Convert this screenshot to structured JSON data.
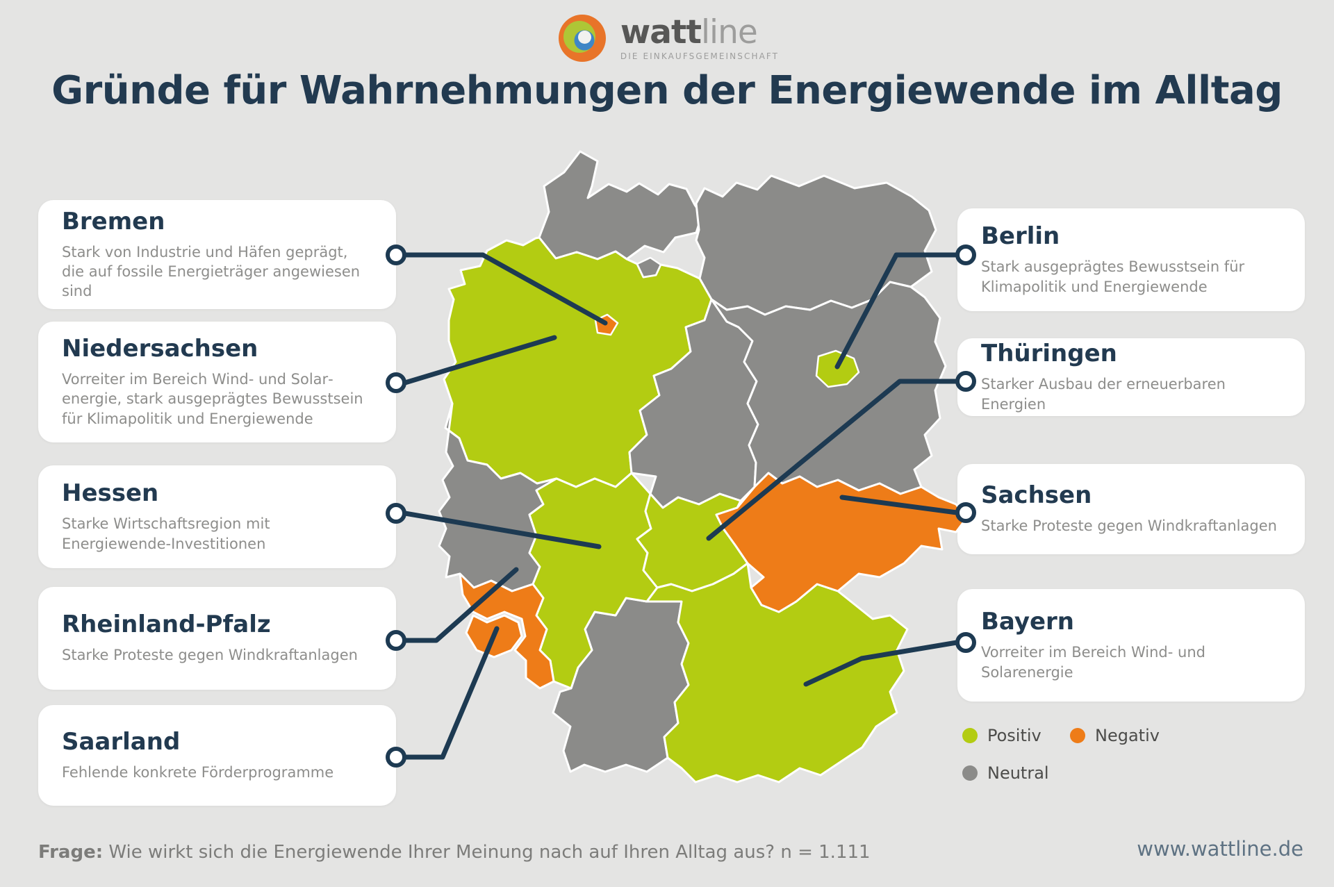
{
  "brand": {
    "name_bold": "watt",
    "name_light": "line",
    "tagline": "DIE EINKAUFSGEMEINSCHAFT"
  },
  "title": "Gründe für Wahrnehmungen der Energiewende im Alltag",
  "callouts": {
    "bremen": {
      "name": "Bremen",
      "description": "Stark von Industrie und Häfen geprägt, die auf fossile Energieträger angewiesen sind"
    },
    "niedersachsen": {
      "name": "Niedersachsen",
      "description": "Vorreiter im Bereich Wind- und Solar­energie, stark ausgeprägtes Bewusstsein für Klimapolitik und Energiewende"
    },
    "hessen": {
      "name": "Hessen",
      "description": "Starke Wirtschaftsregion mit Energiewende-Investitionen"
    },
    "rheinland_pfalz": {
      "name": "Rheinland-Pfalz",
      "description": "Starke Proteste gegen Windkraftanlagen"
    },
    "saarland": {
      "name": "Saarland",
      "description": "Fehlende konkrete Förderprogramme"
    },
    "berlin": {
      "name": "Berlin",
      "description": "Stark ausgeprägtes Bewusstsein für Klimapolitik und Energiewende"
    },
    "thueringen": {
      "name": "Thüringen",
      "description": "Starker Ausbau der erneuerbaren Energien"
    },
    "sachsen": {
      "name": "Sachsen",
      "description": "Starke Proteste gegen Windkraftanlagen"
    },
    "bayern": {
      "name": "Bayern",
      "description": "Vorreiter im Bereich Wind- und Solarenergie"
    }
  },
  "legend": {
    "items": [
      {
        "id": "positiv",
        "label": "Positiv",
        "color": "#b3cc12"
      },
      {
        "id": "negativ",
        "label": "Negativ",
        "color": "#ee7c18"
      },
      {
        "id": "neutral",
        "label": "Neutral",
        "color": "#8b8b89"
      }
    ]
  },
  "map": {
    "sentiment_colors": {
      "positiv": "#b3cc12",
      "negativ": "#ee7c18",
      "neutral": "#8b8b89"
    },
    "states": [
      {
        "id": "schleswig-holstein",
        "name": "Schleswig-Holstein",
        "sentiment": "neutral"
      },
      {
        "id": "mecklenburg-vorpommern",
        "name": "Mecklenburg-Vorpommern",
        "sentiment": "neutral"
      },
      {
        "id": "niedersachsen",
        "name": "Niedersachsen",
        "sentiment": "positiv"
      },
      {
        "id": "sachsen-anhalt",
        "name": "Sachsen-Anhalt",
        "sentiment": "neutral"
      },
      {
        "id": "brandenburg",
        "name": "Brandenburg",
        "sentiment": "neutral"
      },
      {
        "id": "nordrhein-westfalen",
        "name": "Nordrhein-Westfalen",
        "sentiment": "neutral"
      },
      {
        "id": "baden-wuerttemberg",
        "name": "Baden-Württemberg",
        "sentiment": "neutral"
      },
      {
        "id": "hessen",
        "name": "Hessen",
        "sentiment": "positiv"
      },
      {
        "id": "thueringen",
        "name": "Thüringen",
        "sentiment": "positiv"
      },
      {
        "id": "bayern",
        "name": "Bayern",
        "sentiment": "positiv"
      },
      {
        "id": "rheinland-pfalz",
        "name": "Rheinland-Pfalz",
        "sentiment": "negativ"
      },
      {
        "id": "sachsen",
        "name": "Sachsen",
        "sentiment": "negativ"
      },
      {
        "id": "saarland",
        "name": "Saarland",
        "sentiment": "negativ"
      },
      {
        "id": "hamburg",
        "name": "Hamburg",
        "sentiment": "neutral"
      },
      {
        "id": "bremen",
        "name": "Bremen",
        "sentiment": "negativ"
      },
      {
        "id": "berlin",
        "name": "Berlin",
        "sentiment": "positiv"
      }
    ]
  },
  "footer": {
    "question_label": "Frage:",
    "question_text": " Wie wirkt sich die Energiewende Ihrer Meinung nach auf Ihren Alltag aus? n = 1.111",
    "website": "www.wattline.de"
  },
  "colors": {
    "navy": "#1d3a52",
    "background": "#e4e4e3",
    "card": "#ffffff",
    "positiv_green": "#b3cc12",
    "negativ_orange": "#ee7c18",
    "neutral_gray": "#8b8b89"
  }
}
